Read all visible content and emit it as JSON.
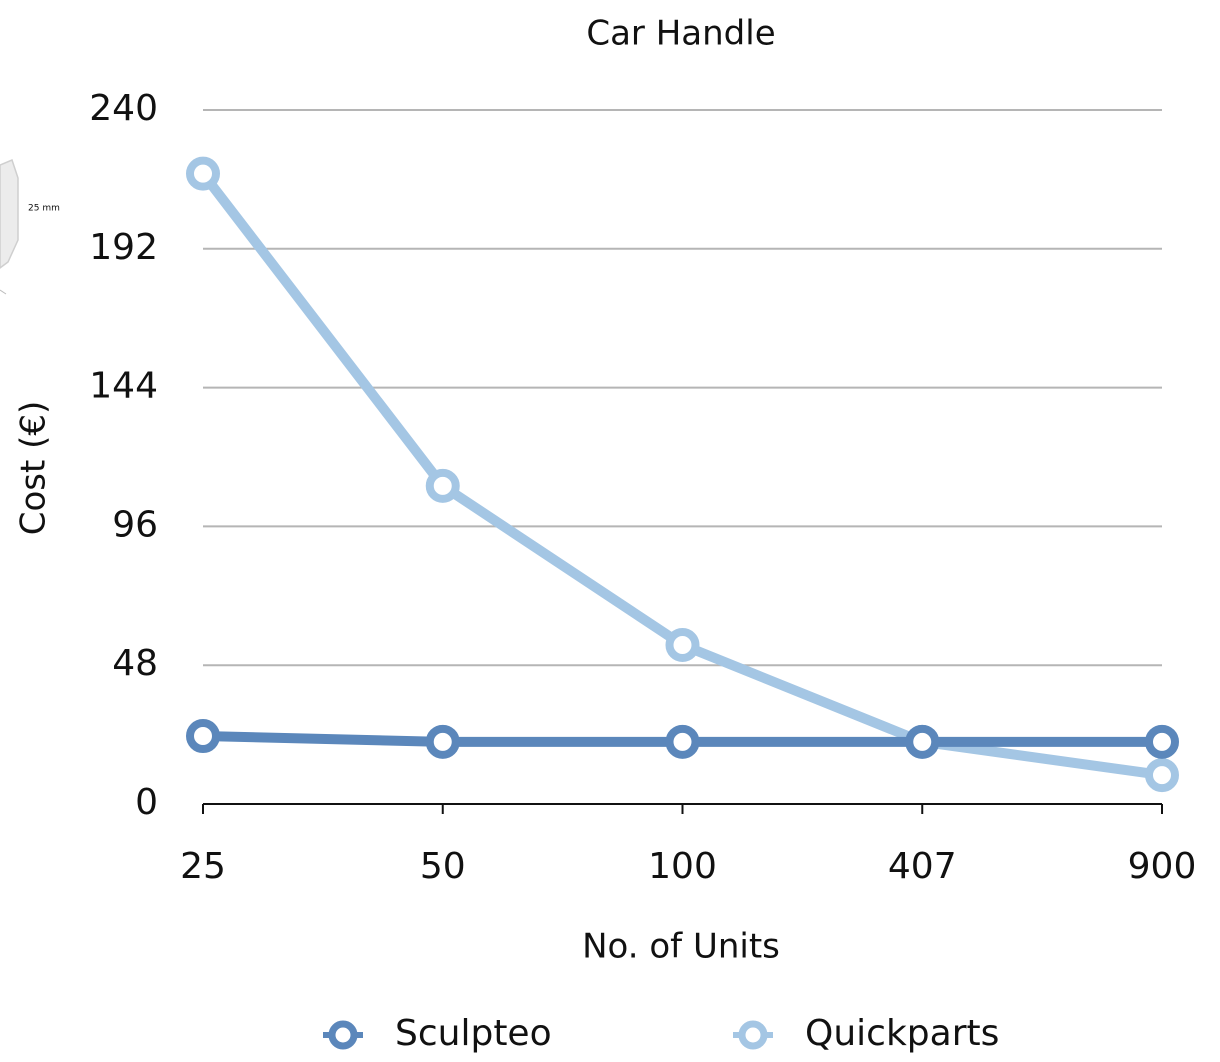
{
  "chart_data": {
    "type": "line",
    "title": "Car Handle",
    "x_label": "No. of Units",
    "y_label": "Cost (€)",
    "annotation": "25 mm",
    "categories": [
      "25",
      "50",
      "100",
      "407",
      "900"
    ],
    "series": [
      {
        "name": "Sculpteo",
        "color": "#5b87bb",
        "values": [
          23.5,
          21.5,
          21.5,
          21.5,
          21.5
        ]
      },
      {
        "name": "Quickparts",
        "color": "#a4c6e4",
        "values": [
          218,
          110,
          55,
          21.5,
          10
        ]
      }
    ],
    "ylim": [
      0,
      240
    ],
    "yticks": [
      0,
      48,
      96,
      144,
      192,
      240
    ],
    "grid": true,
    "legend": "bottom"
  }
}
